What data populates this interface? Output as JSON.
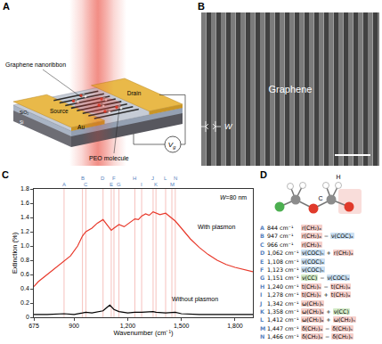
{
  "panel_a": {
    "panel_label": "A",
    "labels": {
      "nanoribbon": "Graphene nanoribbon",
      "drain": "Drain",
      "source": "Source",
      "au": "Au",
      "peo": "PEO molecule",
      "sio2": "SiO₂",
      "si": "Si"
    },
    "gate_voltage": {
      "main": "V",
      "sub": "g"
    }
  },
  "panel_b": {
    "panel_label": "B",
    "graphene": "Graphene",
    "width": "W"
  },
  "chart_data": {
    "panel_label": "C",
    "type": "line",
    "x_label": "Wavenumber (cm⁻¹)",
    "y_label": "Extinction (%)",
    "annotation": "W=80 nm",
    "peaks": {
      "labels": [
        "A",
        "B",
        "C",
        "D",
        "E",
        "F",
        "G",
        "H",
        "I",
        "J",
        "K",
        "L",
        "M",
        "N"
      ],
      "x": [
        844,
        947,
        966,
        1062,
        1108,
        1123,
        1151,
        1240,
        1278,
        1342,
        1358,
        1412,
        1447,
        1466
      ],
      "color": "#f2a6a0"
    },
    "series": [
      {
        "name": "With plasmon",
        "color": "#e8392b",
        "x": [
          675,
          700,
          750,
          800,
          844,
          880,
          920,
          947,
          966,
          1000,
          1030,
          1062,
          1080,
          1108,
          1123,
          1151,
          1180,
          1210,
          1240,
          1260,
          1278,
          1300,
          1320,
          1342,
          1358,
          1380,
          1412,
          1430,
          1447,
          1466,
          1500,
          1550,
          1600,
          1650,
          1700,
          1750,
          1800,
          1850,
          1900
        ],
        "values": [
          0.43,
          0.5,
          0.6,
          0.7,
          0.78,
          0.86,
          1.0,
          1.14,
          1.2,
          1.25,
          1.32,
          1.37,
          1.31,
          1.22,
          1.25,
          1.3,
          1.27,
          1.32,
          1.38,
          1.37,
          1.42,
          1.45,
          1.43,
          1.48,
          1.46,
          1.44,
          1.46,
          1.42,
          1.38,
          1.35,
          1.25,
          1.1,
          0.98,
          0.88,
          0.8,
          0.74,
          0.7,
          0.67,
          0.64
        ]
      },
      {
        "name": "Without plasmon",
        "color": "#000000",
        "x": [
          675,
          750,
          844,
          900,
          947,
          966,
          1000,
          1062,
          1085,
          1100,
          1123,
          1151,
          1200,
          1240,
          1278,
          1342,
          1358,
          1412,
          1466,
          1500,
          1600,
          1700,
          1800,
          1900
        ],
        "values": [
          0.04,
          0.04,
          0.05,
          0.04,
          0.06,
          0.07,
          0.06,
          0.09,
          0.14,
          0.17,
          0.11,
          0.08,
          0.06,
          0.07,
          0.07,
          0.08,
          0.07,
          0.06,
          0.07,
          0.05,
          0.04,
          0.04,
          0.04,
          0.04
        ]
      }
    ],
    "xlim": [
      675,
      1900
    ],
    "xticks": [
      675,
      900,
      {
        "value": 1200,
        "label": "1,200"
      },
      {
        "value": 1500,
        "label": "1,500"
      },
      {
        "value": 1800,
        "label": "1,800"
      }
    ],
    "ylim": [
      0,
      1.8
    ],
    "yticks": [
      0,
      0.2,
      0.4,
      0.6,
      0.8,
      {
        "value": 1,
        "label": "1.0"
      },
      1.2,
      1.4,
      1.6,
      1.8
    ],
    "grid": false
  },
  "panel_d": {
    "panel_label": "D",
    "atoms": [
      "C",
      "H"
    ],
    "rows": [
      {
        "label": "A",
        "wavenumber": "844 cm⁻¹",
        "parts": [
          {
            "text": "r(CH₂)ₐ",
            "color": "#f6cfca"
          }
        ]
      },
      {
        "label": "B",
        "wavenumber": "947 cm⁻¹",
        "parts": [
          {
            "text": "r(CH₂)ₐ",
            "color": "#f6cfca"
          },
          {
            "text": "−"
          },
          {
            "text": "ν(COC)ₐ",
            "color": "#cbe0f2"
          }
        ]
      },
      {
        "label": "C",
        "wavenumber": "966 cm⁻¹",
        "parts": [
          {
            "text": "r(CH₂)ₛ",
            "color": "#f6cfca"
          }
        ]
      },
      {
        "label": "D",
        "wavenumber": "1,062 cm⁻¹",
        "parts": [
          {
            "text": "ν(COC)ₛ",
            "color": "#cbe0f2"
          },
          {
            "text": "+"
          },
          {
            "text": "r(CH₂)ₐ",
            "color": "#f6cfca"
          }
        ]
      },
      {
        "label": "E",
        "wavenumber": "1,108 cm⁻¹",
        "parts": [
          {
            "text": "ν(COC)ₐ",
            "color": "#cbe0f2"
          }
        ]
      },
      {
        "label": "F",
        "wavenumber": "1,123 cm⁻¹",
        "parts": [
          {
            "text": "ν(COC)ₛ",
            "color": "#cbe0f2"
          }
        ]
      },
      {
        "label": "G",
        "wavenumber": "1,151 cm⁻¹",
        "parts": [
          {
            "text": "ν(CC)",
            "color": "#d2eac6"
          },
          {
            "text": "−"
          },
          {
            "text": "ν(COC)ₐ",
            "color": "#cbe0f2"
          }
        ]
      },
      {
        "label": "H",
        "wavenumber": "1,240 cm⁻¹",
        "parts": [
          {
            "text": "t(CH₂)ₛ",
            "color": "#f6cfca"
          },
          {
            "text": "−"
          },
          {
            "text": "t(CH₂)ₐ",
            "color": "#f6cfca"
          }
        ]
      },
      {
        "label": "I",
        "wavenumber": "1,278 cm⁻¹",
        "parts": [
          {
            "text": "t(CH₂)ₛ",
            "color": "#f6cfca"
          },
          {
            "text": "+"
          },
          {
            "text": "t(CH₂)ₐ",
            "color": "#f6cfca"
          }
        ]
      },
      {
        "label": "J",
        "wavenumber": "1,342 cm⁻¹",
        "parts": [
          {
            "text": "ω(CH₂)ₛ",
            "color": "#f6cfca"
          }
        ]
      },
      {
        "label": "K",
        "wavenumber": "1,358 cm⁻¹",
        "parts": [
          {
            "text": "ω(CH₂)ₐ",
            "color": "#f6cfca"
          },
          {
            "text": "+"
          },
          {
            "text": "ν(CC)",
            "color": "#d2eac6"
          }
        ]
      },
      {
        "label": "L",
        "wavenumber": "1,412 cm⁻¹",
        "parts": [
          {
            "text": "ω(CH₂)ₐ",
            "color": "#f6cfca"
          },
          {
            "text": "+"
          },
          {
            "text": "ω(CH₂)ₛ",
            "color": "#f6cfca"
          }
        ]
      },
      {
        "label": "M",
        "wavenumber": "1,447 cm⁻¹",
        "parts": [
          {
            "text": "δ(CH₂)ₐ",
            "color": "#f6cfca"
          },
          {
            "text": "−"
          },
          {
            "text": "δ(CH₂)ₛ",
            "color": "#f6cfca"
          }
        ]
      },
      {
        "label": "N",
        "wavenumber": "1,466 cm⁻¹",
        "parts": [
          {
            "text": "δ(CH₂)ₐ",
            "color": "#f6cfca"
          },
          {
            "text": "−"
          },
          {
            "text": "δ(CH₂)ₛ",
            "color": "#f6cfca"
          }
        ]
      }
    ]
  }
}
